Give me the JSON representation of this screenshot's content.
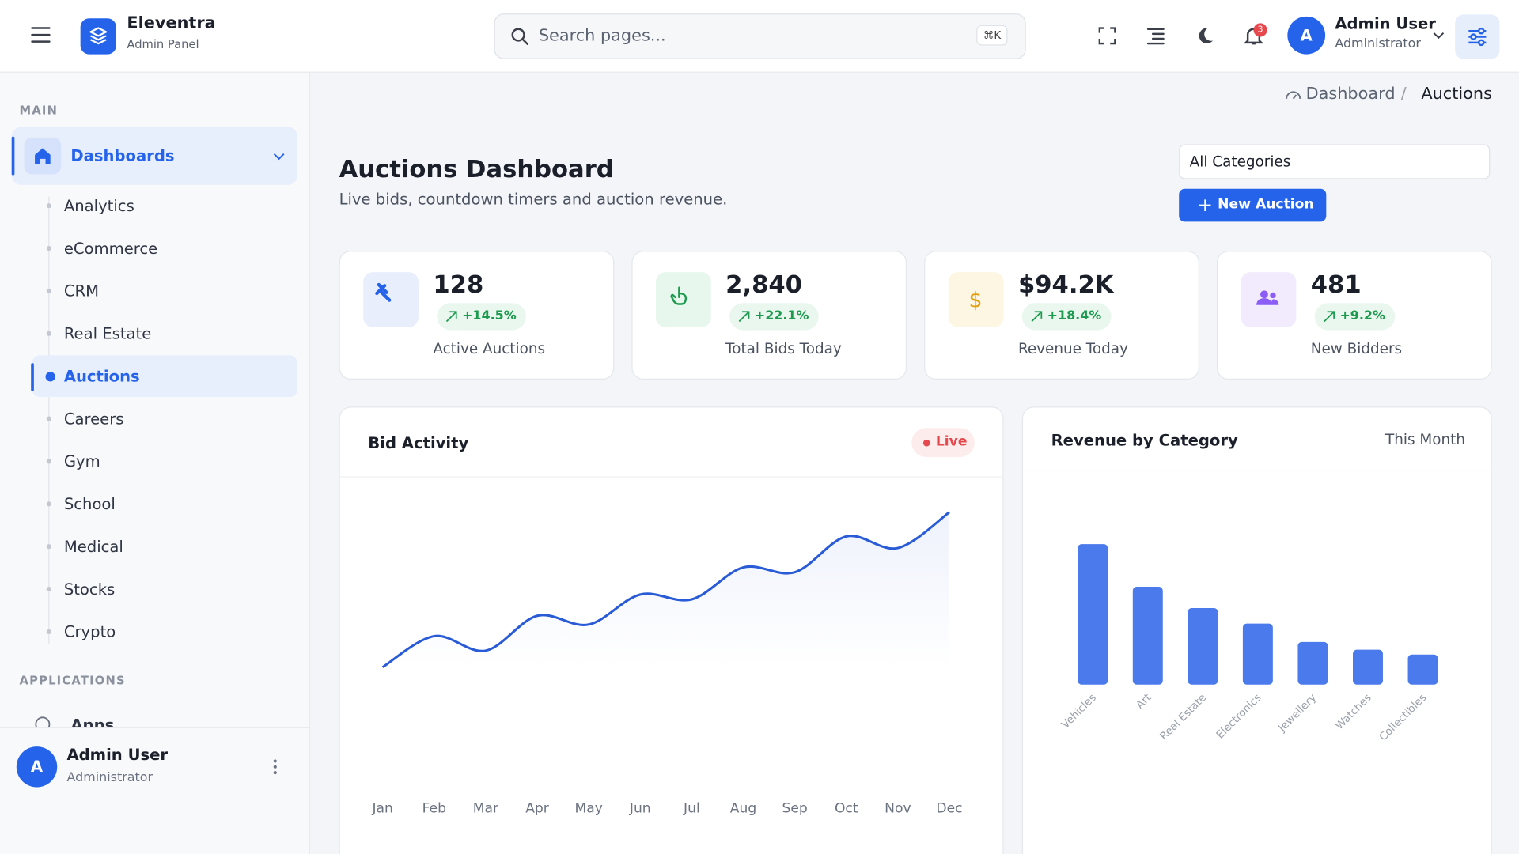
{
  "header": {
    "brand": "Eleventra",
    "brand_sub": "Admin Panel",
    "search_placeholder": "Search pages...",
    "shortcut": "⌘K",
    "notifications": "3",
    "avatar": "A",
    "user_name": "Admin User",
    "user_role": "Administrator"
  },
  "sidebar": {
    "section_main": "MAIN",
    "group": "Dashboards",
    "items": [
      "Analytics",
      "eCommerce",
      "CRM",
      "Real Estate",
      "Auctions",
      "Careers",
      "Gym",
      "School",
      "Medical",
      "Stocks",
      "Crypto"
    ],
    "section_apps": "APPLICATIONS",
    "apps": "Apps",
    "footer": {
      "avatar": "A",
      "name": "Admin User",
      "role": "Administrator"
    }
  },
  "breadcrumb": [
    "Dashboard",
    "Auctions"
  ],
  "page": {
    "title": "Auctions Dashboard",
    "subtitle": "Live bids, countdown timers and auction revenue.",
    "filter": "All Categories",
    "button": "New Auction"
  },
  "stats": [
    {
      "value": "128",
      "change": "+14.5%",
      "label": "Active Auctions"
    },
    {
      "value": "2,840",
      "change": "+22.1%",
      "label": "Total Bids Today"
    },
    {
      "value": "$94.2K",
      "change": "+18.4%",
      "label": "Revenue Today"
    },
    {
      "value": "481",
      "change": "+9.2%",
      "label": "New Bidders"
    }
  ],
  "charts": [
    {
      "type": "line",
      "title": "Bid Activity",
      "badge": "Live",
      "color": "#2a5bd7",
      "x": [
        "Jan",
        "Feb",
        "Mar",
        "Apr",
        "May",
        "Jun",
        "Jul",
        "Aug",
        "Sep",
        "Oct",
        "Nov",
        "Dec"
      ],
      "values": [
        40,
        72,
        57,
        93,
        84,
        115,
        110,
        143,
        138,
        175,
        163,
        200
      ]
    },
    {
      "type": "bar",
      "title": "Revenue by Category",
      "period": "This Month",
      "color": "#4a7aec",
      "categories": [
        "Vehicles",
        "Art",
        "Real Estate",
        "Electronics",
        "Jewellery",
        "Watches",
        "Collectibles"
      ],
      "values": [
        145,
        101,
        79,
        63,
        44,
        36,
        31
      ]
    }
  ]
}
